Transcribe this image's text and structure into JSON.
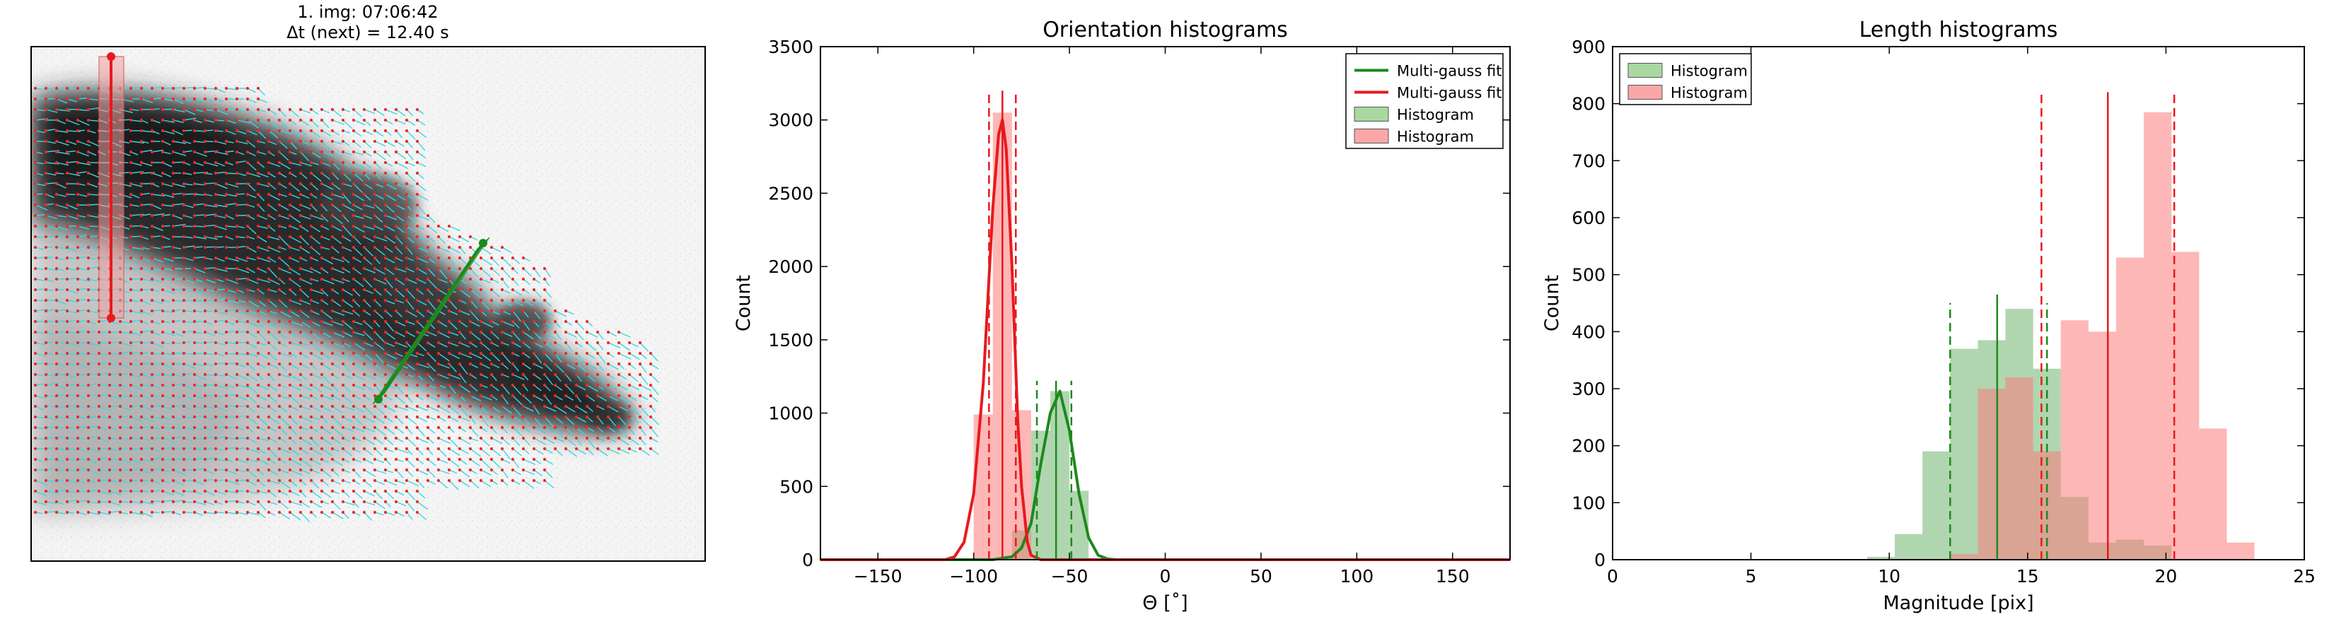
{
  "image_panel": {
    "title_line1": "1. img: 07:06:42",
    "title_line2": "Δt (next) = 12.40 s",
    "lines": [
      {
        "name": "red-pcs-line",
        "color": "#e8191d"
      },
      {
        "name": "green-pcs-line",
        "color": "#1c8a1c"
      }
    ]
  },
  "chart_data": [
    {
      "type": "line",
      "title": "Orientation histograms",
      "xlabel": "Θ [˚]",
      "ylabel": "Count",
      "xlim": [
        -180,
        180
      ],
      "ylim": [
        0,
        3500
      ],
      "xticks": [
        -150,
        -100,
        -50,
        0,
        50,
        100,
        150
      ],
      "yticks": [
        0,
        500,
        1000,
        1500,
        2000,
        2500,
        3000,
        3500
      ],
      "grid": false,
      "legend_position": "top-right",
      "legend": [
        {
          "label": "Multi-gauss fit",
          "kind": "line",
          "color": "#1c8a1c"
        },
        {
          "label": "Multi-gauss fit",
          "kind": "line",
          "color": "#e8191d"
        },
        {
          "label": "Histogram",
          "kind": "patch",
          "color": "#a9d8a0"
        },
        {
          "label": "Histogram",
          "kind": "patch",
          "color": "#fba7a7"
        }
      ],
      "bins": {
        "width": 10
      },
      "series": [
        {
          "kind": "histogram",
          "color": "#1c8a1c",
          "alpha": 0.35,
          "bin_starts": [
            -80,
            -70,
            -60,
            -50
          ],
          "values": [
            200,
            880,
            1150,
            470
          ]
        },
        {
          "kind": "histogram",
          "color": "#fb7b7b",
          "alpha": 0.55,
          "bin_starts": [
            -100,
            -90,
            -80
          ],
          "values": [
            990,
            3050,
            1020
          ]
        },
        {
          "kind": "fit",
          "color": "#1c8a1c",
          "x": [
            -180,
            -90,
            -80,
            -75,
            -70,
            -65,
            -60,
            -55,
            -50,
            -45,
            -40,
            -35,
            -30,
            -25,
            180
          ],
          "y": [
            0,
            0,
            20,
            80,
            250,
            650,
            1000,
            1150,
            880,
            450,
            150,
            30,
            5,
            0,
            0
          ]
        },
        {
          "kind": "fit",
          "color": "#e8191d",
          "x": [
            -180,
            -115,
            -110,
            -105,
            -100,
            -95,
            -90,
            -87,
            -85,
            -83,
            -80,
            -77,
            -75,
            -72,
            -70,
            -65,
            180
          ],
          "y": [
            0,
            0,
            20,
            120,
            450,
            1200,
            2400,
            2900,
            3000,
            2800,
            2000,
            950,
            500,
            120,
            30,
            0,
            0
          ]
        },
        {
          "kind": "vline",
          "color": "#1c8a1c",
          "style": "solid",
          "x": -57,
          "ymax": 1220
        },
        {
          "kind": "vline",
          "color": "#1c8a1c",
          "style": "dashed",
          "x": -67,
          "ymax": 1220
        },
        {
          "kind": "vline",
          "color": "#1c8a1c",
          "style": "dashed",
          "x": -49,
          "ymax": 1220
        },
        {
          "kind": "vline",
          "color": "#e8191d",
          "style": "solid",
          "x": -85,
          "ymax": 3200
        },
        {
          "kind": "vline",
          "color": "#e8191d",
          "style": "dashed",
          "x": -92,
          "ymax": 3200
        },
        {
          "kind": "vline",
          "color": "#e8191d",
          "style": "dashed",
          "x": -78,
          "ymax": 3200
        }
      ]
    },
    {
      "type": "bar",
      "title": "Length histograms",
      "xlabel": "Magnitude [pix]",
      "ylabel": "Count",
      "xlim": [
        0,
        25
      ],
      "ylim": [
        0,
        900
      ],
      "xticks": [
        0,
        5,
        10,
        15,
        20,
        25
      ],
      "yticks": [
        0,
        100,
        200,
        300,
        400,
        500,
        600,
        700,
        800,
        900
      ],
      "grid": false,
      "legend_position": "top-left",
      "legend": [
        {
          "label": "Histogram",
          "kind": "patch",
          "color": "#a9d8a0"
        },
        {
          "label": "Histogram",
          "kind": "patch",
          "color": "#fba7a7"
        }
      ],
      "series": [
        {
          "kind": "histogram",
          "color": "#1c8a1c",
          "alpha": 0.35,
          "bin_starts": [
            9.2,
            10.2,
            11.2,
            12.2,
            13.2,
            14.2,
            15.2,
            16.2,
            17.2,
            18.2,
            19.2
          ],
          "bin_width": 1.0,
          "values": [
            5,
            45,
            190,
            370,
            385,
            440,
            335,
            110,
            30,
            35,
            25
          ]
        },
        {
          "kind": "histogram",
          "color": "#fb7b7b",
          "alpha": 0.55,
          "bin_starts": [
            12.2,
            13.2,
            14.2,
            15.2,
            16.2,
            17.2,
            18.2,
            19.2,
            20.2,
            21.2,
            22.2
          ],
          "bin_width": 1.0,
          "values": [
            10,
            300,
            320,
            190,
            420,
            400,
            530,
            785,
            540,
            230,
            30
          ]
        },
        {
          "kind": "vline",
          "color": "#1c8a1c",
          "style": "solid",
          "x": 13.9,
          "ymax": 465
        },
        {
          "kind": "vline",
          "color": "#1c8a1c",
          "style": "dashed",
          "x": 12.2,
          "ymax": 450
        },
        {
          "kind": "vline",
          "color": "#1c8a1c",
          "style": "dashed",
          "x": 15.7,
          "ymax": 450
        },
        {
          "kind": "vline",
          "color": "#e8191d",
          "style": "solid",
          "x": 17.9,
          "ymax": 820
        },
        {
          "kind": "vline",
          "color": "#e8191d",
          "style": "dashed",
          "x": 15.5,
          "ymax": 820
        },
        {
          "kind": "vline",
          "color": "#e8191d",
          "style": "dashed",
          "x": 20.3,
          "ymax": 820
        }
      ]
    }
  ]
}
